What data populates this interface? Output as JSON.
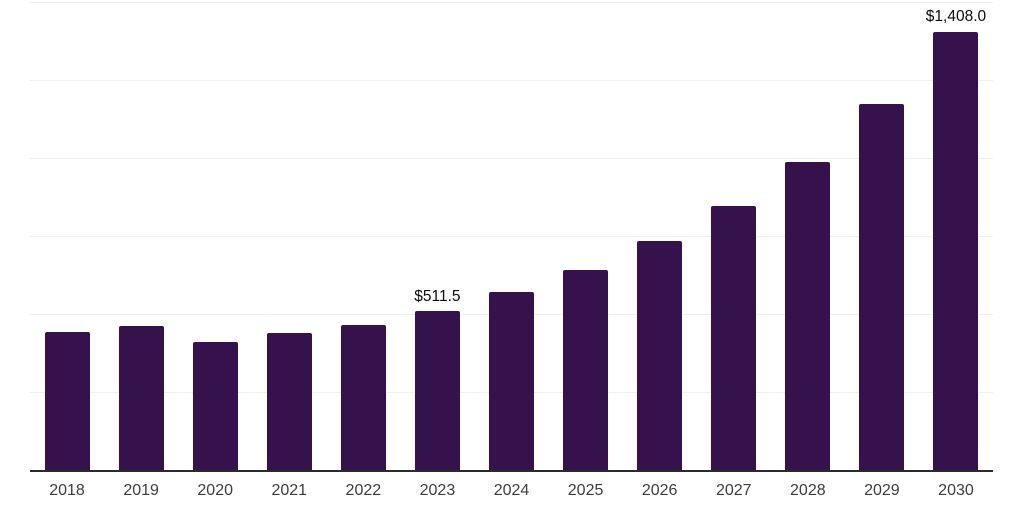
{
  "chart_data": {
    "type": "bar",
    "title": "",
    "xlabel": "",
    "ylabel": "",
    "categories": [
      "2018",
      "2019",
      "2020",
      "2021",
      "2022",
      "2023",
      "2024",
      "2025",
      "2026",
      "2027",
      "2028",
      "2029",
      "2030"
    ],
    "values": [
      444,
      466,
      413,
      443,
      468,
      511.5,
      574,
      644,
      736,
      848,
      992,
      1176,
      1408
    ],
    "data_labels": [
      "",
      "",
      "",
      "",
      "",
      "$511.5",
      "",
      "",
      "",
      "",
      "",
      "",
      "$1,408.0"
    ],
    "ylim": [
      0,
      1500
    ],
    "grid_step": 250,
    "grid": "horizontal",
    "legend": "none",
    "y_tick_labels_visible": false,
    "colors": {
      "bar": "#35124B",
      "axis_line": "#2B2B2B",
      "gridline": "#F0F0F0",
      "data_label_text": "#0B0B0B",
      "x_tick_text": "#3D3D3D",
      "background": "#FFFFFF"
    }
  }
}
